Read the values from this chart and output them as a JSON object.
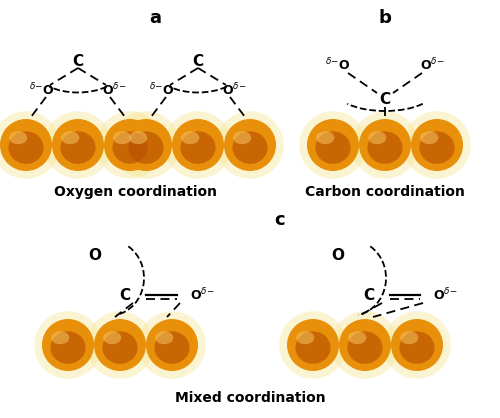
{
  "background_color": "#ffffff",
  "sphere_color_outer": "#e8900a",
  "sphere_color_inner": "#b85000",
  "sphere_color_highlight": "#f5c060",
  "sphere_glow": "#f5e080",
  "label_a": "a",
  "label_b": "b",
  "label_c": "c",
  "label_oxygen": "Oxygen coordination",
  "label_carbon": "Carbon coordination",
  "label_mixed": "Mixed coordination",
  "fig_width": 5.0,
  "fig_height": 4.18,
  "dpi": 100
}
